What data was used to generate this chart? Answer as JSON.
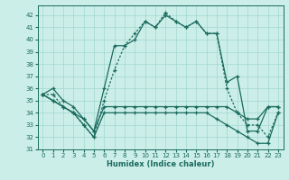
{
  "xlabel": "Humidex (Indice chaleur)",
  "background_color": "#cceee8",
  "line_color": "#1a6b5e",
  "xlim": [
    -0.5,
    23.5
  ],
  "ylim": [
    31,
    42.8
  ],
  "yticks": [
    31,
    32,
    33,
    34,
    35,
    36,
    37,
    38,
    39,
    40,
    41,
    42
  ],
  "xticks": [
    0,
    1,
    2,
    3,
    4,
    5,
    6,
    7,
    8,
    9,
    10,
    11,
    12,
    13,
    14,
    15,
    16,
    17,
    18,
    19,
    20,
    21,
    22,
    23
  ],
  "hours": [
    0,
    1,
    2,
    3,
    4,
    5,
    6,
    7,
    8,
    9,
    10,
    11,
    12,
    13,
    14,
    15,
    16,
    17,
    18,
    19,
    20,
    21,
    22,
    23
  ],
  "line1": [
    35.5,
    36.0,
    35.0,
    34.5,
    33.5,
    32.5,
    36.0,
    39.5,
    39.5,
    40.0,
    41.5,
    41.0,
    42.0,
    41.5,
    41.0,
    41.5,
    40.5,
    40.5,
    36.5,
    37.0,
    32.5,
    32.5,
    34.5,
    34.5
  ],
  "line2": [
    35.5,
    35.0,
    34.5,
    34.0,
    33.5,
    32.5,
    34.5,
    34.5,
    34.5,
    34.5,
    34.5,
    34.5,
    34.5,
    34.5,
    34.5,
    34.5,
    34.5,
    34.5,
    34.5,
    34.0,
    33.5,
    33.5,
    34.5,
    34.5
  ],
  "line3_dotted": [
    35.5,
    35.5,
    34.5,
    34.0,
    33.0,
    32.0,
    35.0,
    37.5,
    39.5,
    40.5,
    41.5,
    41.0,
    42.2,
    41.5,
    41.0,
    41.5,
    40.5,
    40.5,
    36.0,
    34.0,
    33.0,
    33.0,
    32.0,
    34.0
  ],
  "line4": [
    35.5,
    35.0,
    34.5,
    34.0,
    33.0,
    32.0,
    34.0,
    34.0,
    34.0,
    34.0,
    34.0,
    34.0,
    34.0,
    34.0,
    34.0,
    34.0,
    34.0,
    33.5,
    33.0,
    32.5,
    32.0,
    31.5,
    31.5,
    34.0
  ]
}
